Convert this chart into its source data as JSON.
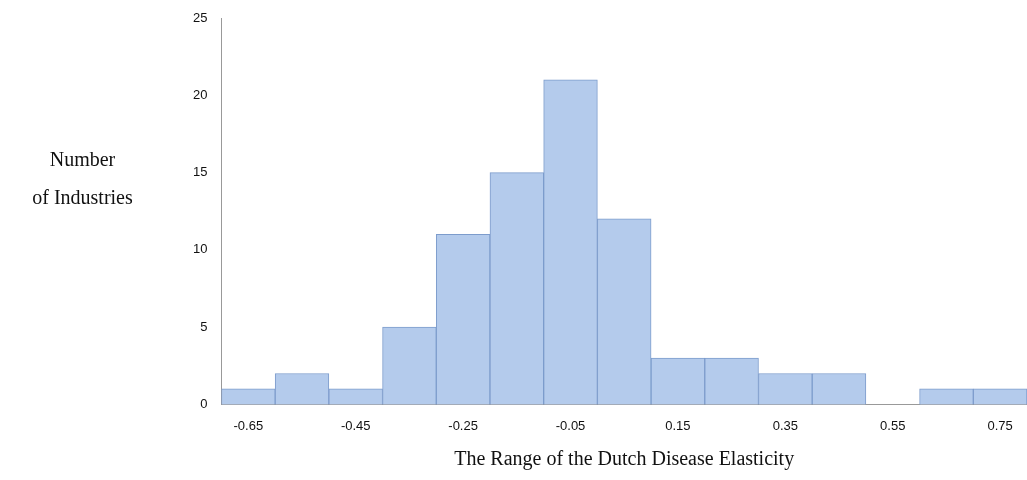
{
  "chart_data": {
    "type": "histogram",
    "xlabel": "The Range of the Dutch Disease Elasticity",
    "ylabel": "Number\nof Industries",
    "bins": [
      -0.7,
      -0.6,
      -0.5,
      -0.4,
      -0.3,
      -0.2,
      -0.1,
      0.0,
      0.1,
      0.2,
      0.3,
      0.4,
      0.5,
      0.6,
      0.7,
      0.8
    ],
    "values": [
      1,
      2,
      1,
      5,
      11,
      15,
      21,
      12,
      3,
      3,
      2,
      2,
      0,
      1,
      1
    ],
    "color": "#b4cbec",
    "xlim": [
      -0.7,
      0.8
    ],
    "xticks": [
      {
        "value": -0.65,
        "label": "-0.65"
      },
      {
        "value": -0.45,
        "label": "-0.45"
      },
      {
        "value": -0.25,
        "label": "-0.25"
      },
      {
        "value": -0.05,
        "label": "-0.05"
      },
      {
        "value": 0.15,
        "label": "0.15"
      },
      {
        "value": 0.35,
        "label": "0.35"
      },
      {
        "value": 0.55,
        "label": "0.55"
      },
      {
        "value": 0.75,
        "label": "0.75"
      }
    ],
    "ylim": [
      0,
      25
    ],
    "yticks": [
      0,
      5,
      10,
      15,
      20,
      25
    ],
    "grid": false
  }
}
